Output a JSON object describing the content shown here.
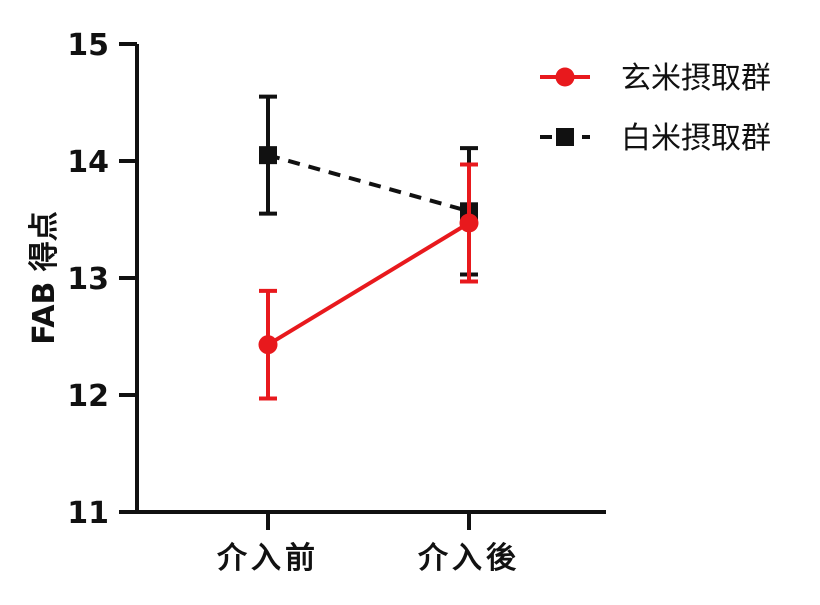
{
  "chart_data": {
    "type": "line",
    "ylabel": "FAB 得点",
    "xlabel": "",
    "categories": [
      "介入前",
      "介入後"
    ],
    "ylim": [
      11,
      15
    ],
    "yticks": [
      11,
      12,
      13,
      14,
      15
    ],
    "grid": false,
    "legend_position": "top-right",
    "series": [
      {
        "name": "玄米摂取群",
        "color": "#e8191d",
        "marker": "circle",
        "line_style": "solid",
        "values": [
          12.43,
          13.47
        ],
        "errors": [
          0.46,
          0.5
        ]
      },
      {
        "name": "白米摂取群",
        "color": "#111111",
        "marker": "square",
        "line_style": "dashed",
        "values": [
          14.05,
          13.57
        ],
        "errors": [
          0.5,
          0.54
        ]
      }
    ]
  }
}
